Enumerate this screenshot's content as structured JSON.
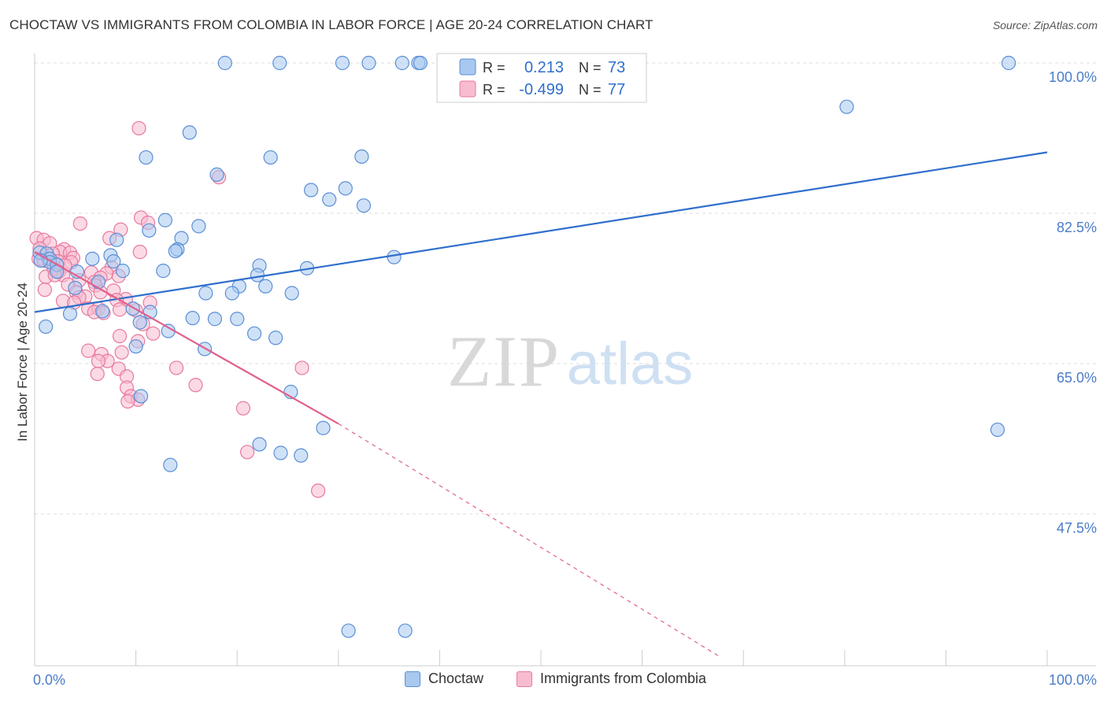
{
  "title": "CHOCTAW VS IMMIGRANTS FROM COLOMBIA IN LABOR FORCE | AGE 20-24 CORRELATION CHART",
  "source": "Source: ZipAtlas.com",
  "watermark": {
    "zip": "ZIP",
    "atlas": "atlas"
  },
  "colors": {
    "blue_fill": "#a8c8f0",
    "blue_stroke": "#5b8fd6",
    "blue_line": "#2f6fcc",
    "pink_fill": "#f7bcd0",
    "pink_stroke": "#e8799f",
    "pink_line": "#e0608c",
    "axis_label": "#4a7cc9"
  },
  "legend_top": [
    {
      "r_label": "R =",
      "r_value": "0.213",
      "n_label": "N =",
      "n_value": "73",
      "color": "blue"
    },
    {
      "r_label": "R =",
      "r_value": "-0.499",
      "n_label": "N =",
      "n_value": "77",
      "color": "pink"
    }
  ],
  "legend_bottom": [
    {
      "label": "Choctaw",
      "color": "blue"
    },
    {
      "label": "Immigrants from Colombia",
      "color": "pink"
    }
  ],
  "chart_data": {
    "type": "scatter",
    "title": "CHOCTAW VS IMMIGRANTS FROM COLOMBIA IN LABOR FORCE | AGE 20-24 CORRELATION CHART",
    "xlabel": "",
    "ylabel": "In Labor Force | Age 20-24",
    "xlim": [
      0,
      100
    ],
    "ylim": [
      30,
      100
    ],
    "x_tick_labels": [
      {
        "value": 0,
        "label": "0.0%"
      },
      {
        "value": 100,
        "label": "100.0%"
      }
    ],
    "y_tick_labels": [
      {
        "value": 47.5,
        "label": "47.5%"
      },
      {
        "value": 65.0,
        "label": "65.0%"
      },
      {
        "value": 82.5,
        "label": "82.5%"
      },
      {
        "value": 100.0,
        "label": "100.0%"
      }
    ],
    "grid": true,
    "series": [
      {
        "name": "Choctaw",
        "color": "blue",
        "R": 0.213,
        "N": 73,
        "trend": {
          "x": [
            0,
            100
          ],
          "y": [
            71.0,
            89.6
          ]
        },
        "points": [
          [
            18.8,
            100
          ],
          [
            24.2,
            100
          ],
          [
            30.4,
            100
          ],
          [
            33.0,
            100
          ],
          [
            36.3,
            100
          ],
          [
            37.9,
            100
          ],
          [
            38.1,
            100
          ],
          [
            96.2,
            100
          ],
          [
            80.2,
            94.9
          ],
          [
            15.3,
            91.9
          ],
          [
            11.0,
            89.0
          ],
          [
            23.3,
            89.0
          ],
          [
            32.3,
            89.1
          ],
          [
            18.0,
            87.0
          ],
          [
            27.3,
            85.2
          ],
          [
            30.7,
            85.4
          ],
          [
            29.1,
            84.1
          ],
          [
            32.5,
            83.4
          ],
          [
            12.9,
            81.7
          ],
          [
            16.2,
            81.0
          ],
          [
            11.3,
            80.5
          ],
          [
            8.1,
            79.4
          ],
          [
            14.5,
            79.6
          ],
          [
            14.1,
            78.3
          ],
          [
            13.9,
            78.1
          ],
          [
            0.5,
            77.9
          ],
          [
            1.2,
            77.8
          ],
          [
            1.5,
            77.2
          ],
          [
            7.5,
            77.6
          ],
          [
            35.5,
            77.4
          ],
          [
            5.7,
            77.2
          ],
          [
            1.5,
            76.8
          ],
          [
            0.6,
            77.0
          ],
          [
            2.2,
            76.5
          ],
          [
            7.8,
            76.9
          ],
          [
            22.2,
            76.4
          ],
          [
            8.7,
            75.8
          ],
          [
            12.7,
            75.8
          ],
          [
            4.2,
            75.7
          ],
          [
            26.9,
            76.1
          ],
          [
            22.0,
            75.3
          ],
          [
            2.2,
            75.7
          ],
          [
            6.3,
            74.5
          ],
          [
            20.2,
            74.0
          ],
          [
            22.8,
            74.0
          ],
          [
            16.9,
            73.2
          ],
          [
            19.5,
            73.2
          ],
          [
            4.0,
            73.8
          ],
          [
            25.4,
            73.2
          ],
          [
            9.7,
            71.4
          ],
          [
            11.4,
            71.0
          ],
          [
            6.7,
            71.1
          ],
          [
            3.5,
            70.8
          ],
          [
            15.6,
            70.3
          ],
          [
            17.8,
            70.2
          ],
          [
            20.0,
            70.2
          ],
          [
            10.4,
            69.8
          ],
          [
            23.8,
            68.0
          ],
          [
            21.7,
            68.5
          ],
          [
            1.1,
            69.3
          ],
          [
            13.2,
            68.8
          ],
          [
            10.0,
            67.0
          ],
          [
            16.8,
            66.7
          ],
          [
            10.5,
            61.2
          ],
          [
            25.3,
            61.7
          ],
          [
            28.5,
            57.5
          ],
          [
            95.1,
            57.3
          ],
          [
            22.2,
            55.6
          ],
          [
            24.3,
            54.6
          ],
          [
            26.3,
            54.3
          ],
          [
            13.4,
            53.2
          ],
          [
            31.0,
            33.9
          ],
          [
            36.6,
            33.9
          ]
        ]
      },
      {
        "name": "Immigrants from Colombia",
        "color": "pink",
        "R": -0.499,
        "N": 77,
        "trend": {
          "x": [
            0,
            30
          ],
          "y": [
            78.0,
            58.0
          ]
        },
        "trend_extension": {
          "x": [
            30,
            67.5
          ],
          "y": [
            58.0,
            31.0
          ]
        },
        "points": [
          [
            10.3,
            92.4
          ],
          [
            18.2,
            86.7
          ],
          [
            10.5,
            82.0
          ],
          [
            11.2,
            81.4
          ],
          [
            4.5,
            81.3
          ],
          [
            8.5,
            80.6
          ],
          [
            0.2,
            79.6
          ],
          [
            0.9,
            79.4
          ],
          [
            7.4,
            79.6
          ],
          [
            1.5,
            79.0
          ],
          [
            2.9,
            78.3
          ],
          [
            0.5,
            78.4
          ],
          [
            2.5,
            78.0
          ],
          [
            1.8,
            77.8
          ],
          [
            3.5,
            77.9
          ],
          [
            10.4,
            78.0
          ],
          [
            0.4,
            77.2
          ],
          [
            3.8,
            77.3
          ],
          [
            0.9,
            77.0
          ],
          [
            1.4,
            77.2
          ],
          [
            1.9,
            76.7
          ],
          [
            2.3,
            76.9
          ],
          [
            3.6,
            76.8
          ],
          [
            3.0,
            76.4
          ],
          [
            1.9,
            76.0
          ],
          [
            7.6,
            76.2
          ],
          [
            2.4,
            75.7
          ],
          [
            5.6,
            75.6
          ],
          [
            7.1,
            75.5
          ],
          [
            2.8,
            75.3
          ],
          [
            1.1,
            75.1
          ],
          [
            2.0,
            75.3
          ],
          [
            6.5,
            75.0
          ],
          [
            8.3,
            75.2
          ],
          [
            4.4,
            74.7
          ],
          [
            5.9,
            74.5
          ],
          [
            3.3,
            74.2
          ],
          [
            6.0,
            74.1
          ],
          [
            1.0,
            73.6
          ],
          [
            7.8,
            73.5
          ],
          [
            4.1,
            73.3
          ],
          [
            6.5,
            73.3
          ],
          [
            5.0,
            72.8
          ],
          [
            2.8,
            72.3
          ],
          [
            9.0,
            72.5
          ],
          [
            8.1,
            72.4
          ],
          [
            4.4,
            72.7
          ],
          [
            3.9,
            72.1
          ],
          [
            11.4,
            72.1
          ],
          [
            5.3,
            71.4
          ],
          [
            6.3,
            71.4
          ],
          [
            8.4,
            71.3
          ],
          [
            10.0,
            71.2
          ],
          [
            5.9,
            71.0
          ],
          [
            6.8,
            70.9
          ],
          [
            10.7,
            69.6
          ],
          [
            11.7,
            68.5
          ],
          [
            8.4,
            68.2
          ],
          [
            10.2,
            67.6
          ],
          [
            5.3,
            66.5
          ],
          [
            8.6,
            66.3
          ],
          [
            6.6,
            66.1
          ],
          [
            7.2,
            65.3
          ],
          [
            6.3,
            65.3
          ],
          [
            14.0,
            64.5
          ],
          [
            26.4,
            64.5
          ],
          [
            8.3,
            64.4
          ],
          [
            6.2,
            63.8
          ],
          [
            9.1,
            63.5
          ],
          [
            15.9,
            62.5
          ],
          [
            9.1,
            62.2
          ],
          [
            9.5,
            61.2
          ],
          [
            10.2,
            60.8
          ],
          [
            20.6,
            59.8
          ],
          [
            9.2,
            60.6
          ],
          [
            21.0,
            54.7
          ],
          [
            28.0,
            50.2
          ]
        ]
      }
    ]
  }
}
